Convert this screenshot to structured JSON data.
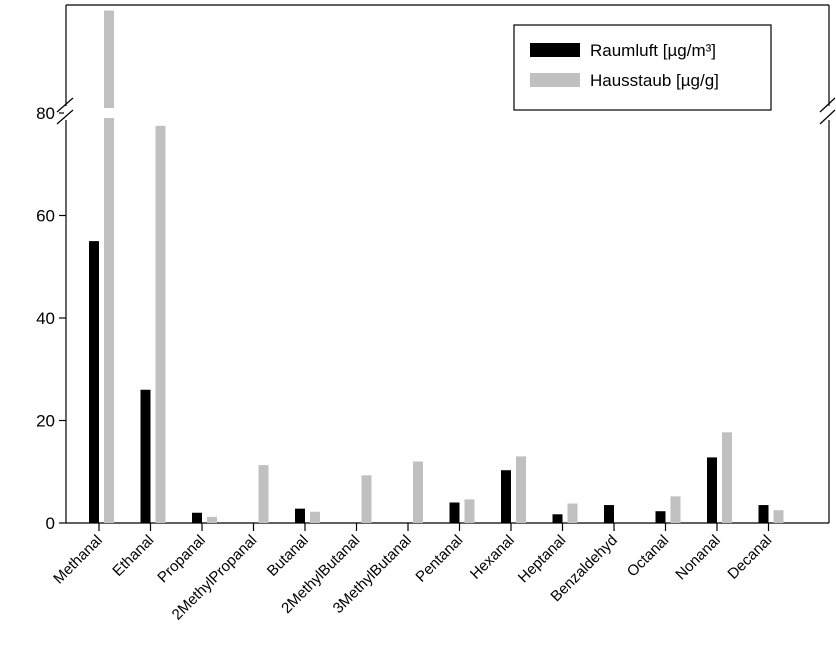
{
  "chart_data": {
    "type": "bar",
    "axis_break": {
      "at": 80,
      "broken_axis": "y"
    },
    "ylim": [
      0,
      80
    ],
    "yticks": [
      0,
      20,
      40,
      60,
      80
    ],
    "categories": [
      "Methanal",
      "Ethanal",
      "Propanal",
      "2MethylPropanal",
      "Butanal",
      "2MethylButanal",
      "3MethylButanal",
      "Pentanal",
      "Hexanal",
      "Heptanal",
      "Benzaldehyd",
      "Octanal",
      "Nonanal",
      "Decanal"
    ],
    "series": [
      {
        "name": "Raumluft [µg/m³]",
        "color": "#000000",
        "values": [
          55,
          26,
          2,
          0,
          2.8,
          0,
          0,
          4,
          10.3,
          1.7,
          3.5,
          2.3,
          12.8,
          3.5
        ]
      },
      {
        "name": "Hausstaub [µg/g]",
        "color": "#c0c0c0",
        "values": [
          100,
          77.5,
          1.2,
          11.3,
          2.2,
          9.3,
          12,
          4.6,
          13,
          3.8,
          0,
          5.2,
          17.7,
          2.5
        ]
      }
    ],
    "legend_position": "top-right",
    "grid": false
  }
}
